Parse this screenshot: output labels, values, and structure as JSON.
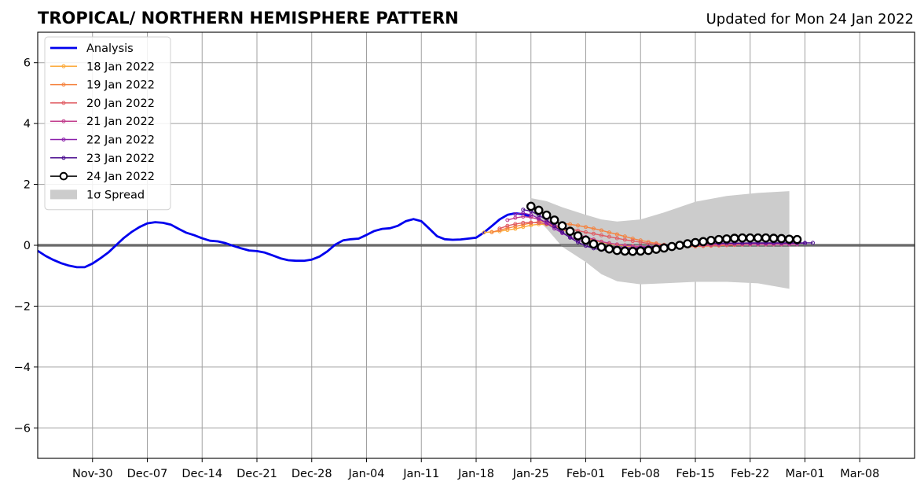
{
  "chart_data": {
    "type": "line",
    "title": "TROPICAL/ NORTHERN HEMISPHERE PATTERN",
    "subtitle": "Updated for Mon 24 Jan 2022",
    "xlabel": "",
    "ylabel": "",
    "xlim": [
      "2021-11-23",
      "2022-03-15"
    ],
    "ylim": [
      -7,
      7
    ],
    "grid": true,
    "legend_position": "top-left",
    "x_ticks": [
      "2021-11-30",
      "2021-12-07",
      "2021-12-14",
      "2021-12-21",
      "2021-12-28",
      "2022-01-04",
      "2022-01-11",
      "2022-01-18",
      "2022-01-25",
      "2022-02-01",
      "2022-02-08",
      "2022-02-15",
      "2022-02-22",
      "2022-03-01",
      "2022-03-08"
    ],
    "x_tick_labels": [
      "Nov-30",
      "Dec-07",
      "Dec-14",
      "Dec-21",
      "Dec-28",
      "Jan-04",
      "Jan-11",
      "Jan-18",
      "Jan-25",
      "Feb-01",
      "Feb-08",
      "Feb-15",
      "Feb-22",
      "Mar-01",
      "Mar-08"
    ],
    "y_ticks": [
      -6,
      -4,
      -2,
      0,
      2,
      4,
      6
    ],
    "y_tick_labels": [
      "−6",
      "−4",
      "−2",
      "0",
      "2",
      "4",
      "6"
    ],
    "series": [
      {
        "name": "Analysis",
        "color": "#0000ee",
        "start": "2021-11-23",
        "values": [
          -0.18,
          -0.35,
          -0.48,
          -0.59,
          -0.67,
          -0.72,
          -0.72,
          -0.6,
          -0.43,
          -0.24,
          0.0,
          0.24,
          0.44,
          0.6,
          0.72,
          0.76,
          0.74,
          0.68,
          0.54,
          0.41,
          0.33,
          0.23,
          0.15,
          0.13,
          0.07,
          -0.02,
          -0.1,
          -0.17,
          -0.19,
          -0.24,
          -0.33,
          -0.43,
          -0.49,
          -0.51,
          -0.51,
          -0.47,
          -0.37,
          -0.2,
          0.02,
          0.16,
          0.2,
          0.22,
          0.34,
          0.47,
          0.54,
          0.56,
          0.64,
          0.79,
          0.86,
          0.79,
          0.55,
          0.3,
          0.2,
          0.18,
          0.19,
          0.22,
          0.25,
          0.42,
          0.63,
          0.85,
          1.0,
          1.05,
          1.02,
          0.94
        ]
      },
      {
        "name": "18 Jan 2022",
        "color": "#fcaa3a",
        "start": "2022-01-19",
        "values": [
          0.42,
          0.44,
          0.46,
          0.5,
          0.54,
          0.6,
          0.66,
          0.69,
          0.68,
          0.62,
          0.52,
          0.42,
          0.32,
          0.24,
          0.16,
          0.1,
          0.05,
          0.01,
          -0.02,
          -0.04,
          -0.05,
          -0.05,
          -0.05,
          -0.04,
          -0.03,
          -0.02,
          -0.01,
          0.0,
          0.01,
          0.02,
          0.03,
          0.03,
          0.03,
          0.03,
          0.03,
          0.03,
          0.03,
          0.03
        ]
      },
      {
        "name": "19 Jan 2022",
        "color": "#f5823d",
        "start": "2022-01-20",
        "values": [
          0.43,
          0.5,
          0.56,
          0.62,
          0.68,
          0.73,
          0.77,
          0.78,
          0.76,
          0.72,
          0.69,
          0.65,
          0.6,
          0.55,
          0.49,
          0.42,
          0.36,
          0.29,
          0.22,
          0.16,
          0.11,
          0.06,
          0.02,
          -0.01,
          -0.03,
          -0.04,
          -0.04,
          -0.03,
          -0.02,
          -0.01,
          0.0,
          0.01,
          0.02,
          0.03,
          0.03,
          0.03,
          0.03,
          0.03
        ]
      },
      {
        "name": "20 Jan 2022",
        "color": "#e05c63",
        "start": "2022-01-21",
        "values": [
          0.55,
          0.64,
          0.7,
          0.74,
          0.75,
          0.74,
          0.7,
          0.65,
          0.6,
          0.54,
          0.48,
          0.43,
          0.38,
          0.33,
          0.28,
          0.23,
          0.18,
          0.14,
          0.1,
          0.06,
          0.03,
          0.01,
          -0.01,
          -0.02,
          -0.02,
          -0.02,
          -0.01,
          0.0,
          0.01,
          0.02,
          0.03,
          0.04,
          0.05,
          0.05,
          0.06,
          0.06,
          0.06,
          0.06
        ]
      },
      {
        "name": "21 Jan 2022",
        "color": "#c13d8c",
        "start": "2022-01-22",
        "values": [
          0.83,
          0.9,
          0.94,
          0.92,
          0.85,
          0.76,
          0.66,
          0.55,
          0.45,
          0.35,
          0.27,
          0.19,
          0.12,
          0.07,
          0.03,
          0.0,
          -0.02,
          -0.04,
          -0.05,
          -0.05,
          -0.05,
          -0.04,
          -0.03,
          -0.02,
          -0.01,
          0.0,
          0.01,
          0.02,
          0.02,
          0.03,
          0.03,
          0.03,
          0.03,
          0.03,
          0.03,
          0.03,
          0.03,
          0.03
        ]
      },
      {
        "name": "22 Jan 2022",
        "color": "#8a1faa",
        "start": "2022-01-23",
        "values": [
          1.02,
          1.06,
          1.0,
          0.88,
          0.72,
          0.55,
          0.4,
          0.27,
          0.17,
          0.09,
          0.03,
          -0.02,
          -0.05,
          -0.07,
          -0.08,
          -0.08,
          -0.07,
          -0.06,
          -0.04,
          -0.02,
          0.0,
          0.02,
          0.03,
          0.04,
          0.05,
          0.06,
          0.06,
          0.07,
          0.07,
          0.07,
          0.07,
          0.07,
          0.07,
          0.07,
          0.07,
          0.07,
          0.07,
          0.07
        ]
      },
      {
        "name": "23 Jan 2022",
        "color": "#4a0c8f",
        "start": "2022-01-24",
        "values": [
          1.17,
          1.12,
          0.99,
          0.83,
          0.63,
          0.43,
          0.25,
          0.1,
          -0.02,
          -0.1,
          -0.15,
          -0.17,
          -0.17,
          -0.15,
          -0.12,
          -0.09,
          -0.06,
          -0.03,
          0.0,
          0.02,
          0.04,
          0.05,
          0.06,
          0.06,
          0.06,
          0.07,
          0.07,
          0.07,
          0.07,
          0.08,
          0.08,
          0.08,
          0.08,
          0.08,
          0.08,
          0.08,
          0.08,
          0.08
        ]
      },
      {
        "name": "24 Jan 2022",
        "color": "#000000",
        "start": "2022-01-25",
        "values": [
          1.28,
          1.15,
          0.99,
          0.83,
          0.64,
          0.46,
          0.31,
          0.17,
          0.04,
          -0.06,
          -0.12,
          -0.17,
          -0.19,
          -0.2,
          -0.19,
          -0.17,
          -0.13,
          -0.09,
          -0.04,
          0.0,
          0.05,
          0.09,
          0.12,
          0.16,
          0.19,
          0.21,
          0.23,
          0.24,
          0.24,
          0.24,
          0.24,
          0.23,
          0.22,
          0.2,
          0.19
        ]
      }
    ],
    "spread": {
      "name": "1σ Spread",
      "color": "#cccccc",
      "x": [
        "2022-01-25",
        "2022-01-27",
        "2022-01-29",
        "2022-02-01",
        "2022-02-03",
        "2022-02-05",
        "2022-02-08",
        "2022-02-11",
        "2022-02-15",
        "2022-02-19",
        "2022-02-23",
        "2022-02-27"
      ],
      "upper": [
        1.55,
        1.45,
        1.25,
        1.0,
        0.85,
        0.78,
        0.85,
        1.08,
        1.43,
        1.62,
        1.72,
        1.78
      ],
      "lower": [
        1.05,
        0.55,
        -0.05,
        -0.55,
        -0.95,
        -1.18,
        -1.28,
        -1.25,
        -1.2,
        -1.2,
        -1.25,
        -1.43
      ]
    },
    "zero_line": true
  }
}
